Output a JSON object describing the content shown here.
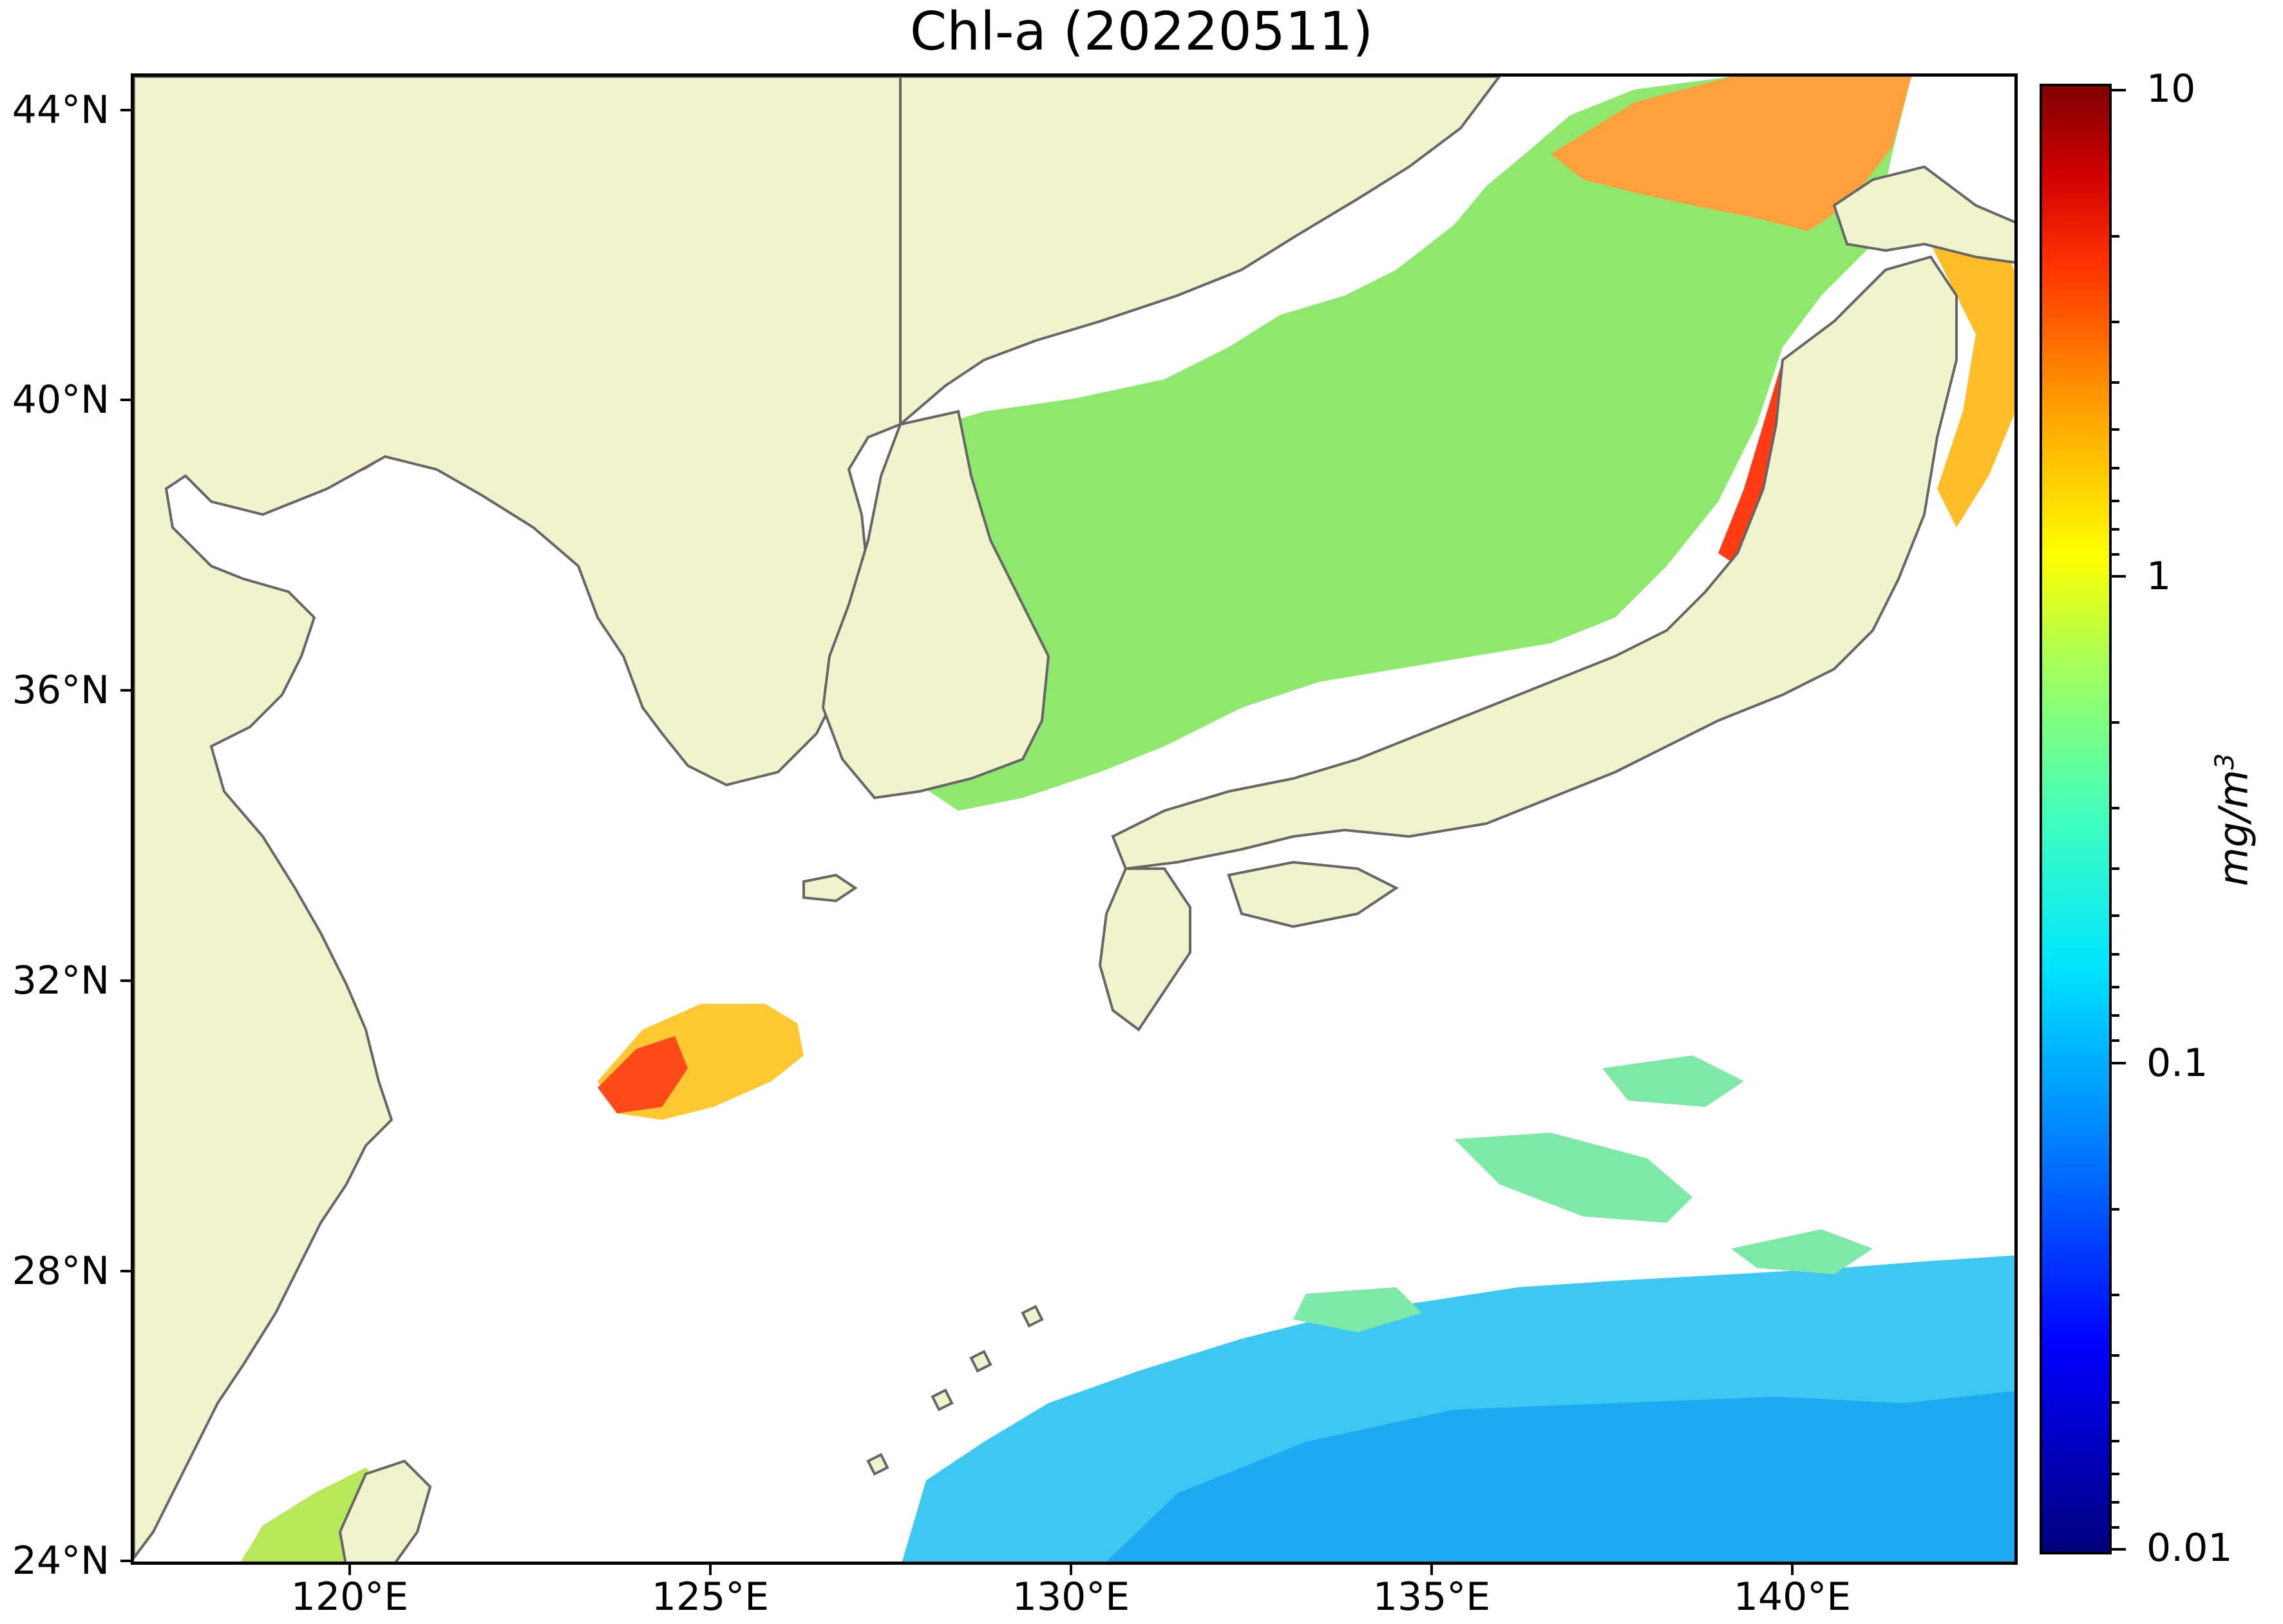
{
  "title": "Chl-a (20220511)",
  "axes": {
    "lat_ticks": [
      "44°N",
      "40°N",
      "36°N",
      "32°N",
      "28°N",
      "24°N"
    ],
    "lon_ticks": [
      "120°E",
      "125°E",
      "130°E",
      "135°E",
      "140°E"
    ]
  },
  "colorbar": {
    "labels": [
      "10",
      "1",
      "0.1",
      "0.01"
    ],
    "unit": "mg/m",
    "unit_exponent": "3",
    "scale": "log",
    "colormap": "jet",
    "range": [
      0.01,
      10
    ]
  },
  "colors": {
    "land": "#f0f3cb",
    "coastline": "#666666",
    "no_data": "#ffffff",
    "low_chl": "#1ec8ff",
    "mid_chl": "#8cf07a",
    "high_chl": "#ff5a1e"
  }
}
